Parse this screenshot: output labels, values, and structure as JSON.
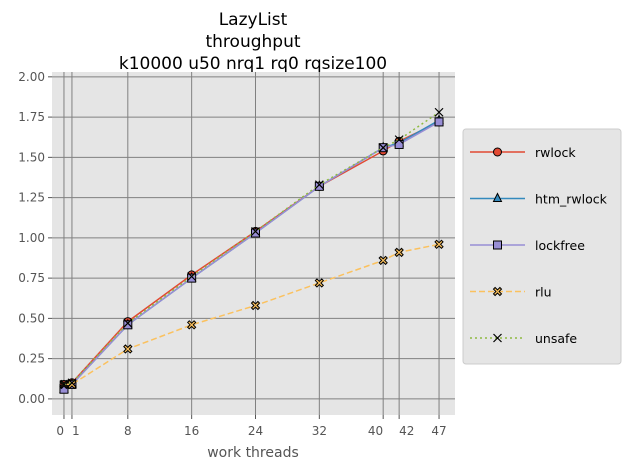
{
  "chart_data": {
    "type": "line",
    "title_lines": [
      "LazyList",
      "throughput",
      "k10000 u50 nrq1 rq0 rqsize100"
    ],
    "xlabel": "work threads",
    "ylabel": "",
    "x_ticks": [
      0,
      1,
      8,
      16,
      24,
      32,
      40,
      42,
      47
    ],
    "x_tick_labels": [
      "0",
      "1",
      "8",
      "16",
      "24",
      "32",
      "40",
      "42",
      "47"
    ],
    "xlim": [
      -1.5,
      49
    ],
    "ylim": [
      -0.1,
      2.03
    ],
    "y_ticks": [
      0,
      0.25,
      0.5,
      0.75,
      1.0,
      1.25,
      1.5,
      1.75,
      2.0
    ],
    "y_tick_labels": [
      "0.00",
      "0.25",
      "0.50",
      "0.75",
      "1.00",
      "1.25",
      "1.50",
      "1.75",
      "2.00"
    ],
    "grid": true,
    "legend_position": "right",
    "x": [
      0,
      1,
      8,
      16,
      24,
      32,
      40,
      42,
      47
    ],
    "series": [
      {
        "name": "rwlock",
        "color": "#E24A33",
        "marker": "circle",
        "dash": "solid",
        "values": [
          0.09,
          0.1,
          0.48,
          0.77,
          1.04,
          1.32,
          1.54,
          1.6,
          1.72
        ]
      },
      {
        "name": "htm_rwlock",
        "color": "#348ABD",
        "marker": "triangle",
        "dash": "solid",
        "values": [
          0.06,
          0.09,
          0.46,
          0.75,
          1.03,
          1.32,
          1.56,
          1.59,
          1.73
        ]
      },
      {
        "name": "lockfree",
        "color": "#988ED5",
        "marker": "square",
        "dash": "solid",
        "values": [
          0.06,
          0.09,
          0.46,
          0.75,
          1.03,
          1.32,
          1.56,
          1.58,
          1.72
        ]
      },
      {
        "name": "rlu",
        "color": "#FBC15E",
        "marker": "x-filled",
        "dash": "dashed",
        "values": [
          0.09,
          0.09,
          0.31,
          0.46,
          0.58,
          0.72,
          0.86,
          0.91,
          0.96
        ]
      },
      {
        "name": "unsafe",
        "color": "#8EBA42",
        "marker": "x",
        "dash": "dotted",
        "values": [
          0.09,
          0.1,
          0.47,
          0.76,
          1.04,
          1.33,
          1.56,
          1.61,
          1.78
        ]
      }
    ]
  }
}
